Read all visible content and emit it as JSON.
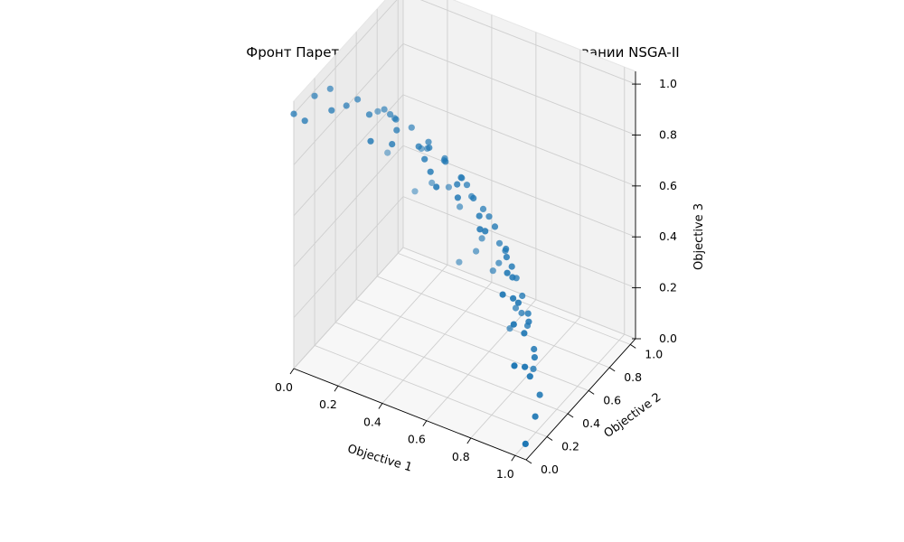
{
  "chart_data": {
    "type": "scatter",
    "title": "Фронт Парето для задачи DTLZ2 при использовании NSGA-II",
    "xlabel": "Objective 1",
    "ylabel": "Objective 2",
    "zlabel": "Objective 3",
    "xlim": [
      0,
      1.05
    ],
    "ylim": [
      0,
      1.05
    ],
    "zlim": [
      0,
      1.05
    ],
    "xticks": [
      "0.0",
      "0.2",
      "0.4",
      "0.6",
      "0.8",
      "1.0"
    ],
    "yticks": [
      "0.0",
      "0.2",
      "0.4",
      "0.6",
      "0.8",
      "1.0"
    ],
    "zticks": [
      "0.0",
      "0.2",
      "0.4",
      "0.6",
      "0.8",
      "1.0"
    ],
    "grid": true,
    "marker_color": "#1f77b4",
    "points": [
      [
        0.0,
        0.0,
        1.0
      ],
      [
        0.05,
        0.0,
        0.99
      ],
      [
        0.0,
        0.2,
        0.98
      ],
      [
        0.1,
        0.15,
        0.98
      ],
      [
        0.12,
        0.25,
        0.96
      ],
      [
        0.0,
        0.35,
        0.94
      ],
      [
        0.1,
        0.4,
        0.91
      ],
      [
        0.2,
        0.3,
        0.93
      ],
      [
        0.3,
        0.1,
        0.95
      ],
      [
        0.35,
        0.2,
        0.91
      ],
      [
        0.25,
        0.45,
        0.86
      ],
      [
        0.15,
        0.55,
        0.82
      ],
      [
        0.3,
        0.35,
        0.88
      ],
      [
        0.4,
        0.35,
        0.85
      ],
      [
        0.45,
        0.3,
        0.84
      ],
      [
        0.5,
        0.25,
        0.83
      ],
      [
        0.55,
        0.2,
        0.81
      ],
      [
        0.6,
        0.3,
        0.74
      ],
      [
        0.55,
        0.4,
        0.73
      ],
      [
        0.6,
        0.45,
        0.67
      ],
      [
        0.65,
        0.4,
        0.64
      ],
      [
        0.7,
        0.3,
        0.65
      ],
      [
        0.65,
        0.55,
        0.53
      ],
      [
        0.7,
        0.55,
        0.46
      ],
      [
        0.75,
        0.5,
        0.43
      ],
      [
        0.8,
        0.4,
        0.45
      ],
      [
        0.85,
        0.3,
        0.43
      ],
      [
        0.9,
        0.2,
        0.39
      ],
      [
        0.4,
        0.6,
        0.69
      ],
      [
        0.35,
        0.7,
        0.62
      ],
      [
        0.5,
        0.6,
        0.62
      ],
      [
        0.55,
        0.65,
        0.52
      ],
      [
        0.45,
        0.75,
        0.49
      ],
      [
        0.3,
        0.85,
        0.43
      ],
      [
        0.6,
        0.7,
        0.38
      ],
      [
        0.7,
        0.65,
        0.3
      ],
      [
        0.8,
        0.55,
        0.24
      ],
      [
        0.9,
        0.4,
        0.17
      ],
      [
        0.85,
        0.45,
        0.27
      ],
      [
        0.6,
        0.8,
        0.0
      ],
      [
        0.7,
        0.7,
        0.14
      ],
      [
        0.75,
        0.6,
        0.27
      ],
      [
        0.8,
        0.6,
        0.0
      ],
      [
        0.85,
        0.5,
        0.14
      ],
      [
        0.9,
        0.45,
        0.0
      ],
      [
        0.95,
        0.3,
        0.0
      ],
      [
        1.0,
        0.1,
        0.0
      ],
      [
        0.95,
        0.2,
        0.24
      ],
      [
        0.5,
        0.85,
        0.17
      ],
      [
        0.4,
        0.9,
        0.19
      ],
      [
        0.3,
        0.95,
        0.09
      ],
      [
        0.45,
        0.85,
        0.28
      ],
      [
        0.65,
        0.75,
        0.12
      ],
      [
        0.75,
        0.65,
        0.13
      ],
      [
        0.2,
        0.9,
        0.39
      ],
      [
        0.1,
        0.95,
        0.3
      ],
      [
        0.35,
        0.85,
        0.37
      ],
      [
        0.55,
        0.8,
        0.24
      ],
      [
        0.0,
        0.9,
        0.44
      ],
      [
        0.2,
        0.8,
        0.57
      ],
      [
        0.05,
        0.7,
        0.71
      ],
      [
        0.15,
        0.65,
        0.74
      ],
      [
        0.25,
        0.6,
        0.76
      ],
      [
        0.35,
        0.55,
        0.76
      ],
      [
        0.45,
        0.5,
        0.74
      ],
      [
        0.5,
        0.55,
        0.67
      ],
      [
        0.25,
        0.75,
        0.61
      ],
      [
        0.45,
        0.65,
        0.61
      ],
      [
        0.6,
        0.6,
        0.53
      ],
      [
        0.65,
        0.65,
        0.39
      ],
      [
        0.75,
        0.45,
        0.49
      ],
      [
        0.8,
        0.35,
        0.49
      ],
      [
        0.85,
        0.35,
        0.39
      ],
      [
        0.9,
        0.3,
        0.31
      ],
      [
        0.95,
        0.25,
        0.18
      ],
      [
        0.95,
        0.1,
        0.29
      ],
      [
        0.85,
        0.2,
        0.49
      ],
      [
        0.7,
        0.35,
        0.62
      ],
      [
        0.4,
        0.45,
        0.8
      ],
      [
        0.2,
        0.5,
        0.84
      ]
    ]
  }
}
